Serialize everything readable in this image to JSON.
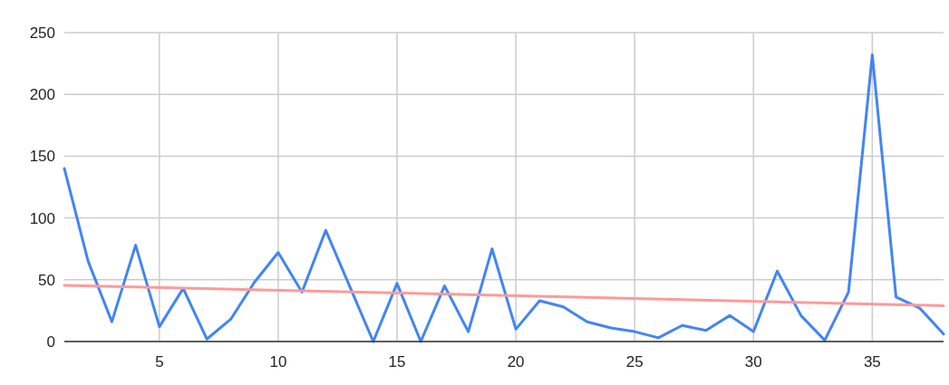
{
  "chart_data": {
    "type": "line",
    "x": [
      1,
      2,
      3,
      4,
      5,
      6,
      7,
      8,
      9,
      10,
      11,
      12,
      13,
      14,
      15,
      16,
      17,
      18,
      19,
      20,
      21,
      22,
      23,
      24,
      25,
      26,
      27,
      28,
      29,
      30,
      31,
      32,
      33,
      34,
      35,
      36,
      37,
      38
    ],
    "series": [
      {
        "color": "#4285f4",
        "values": [
          140,
          65,
          16,
          78,
          12,
          43,
          2,
          18,
          48,
          72,
          40,
          90,
          45,
          0,
          47,
          0,
          45,
          8,
          75,
          10,
          33,
          28,
          16,
          11,
          8,
          3,
          13,
          9,
          21,
          8,
          57,
          21,
          1,
          40,
          232,
          36,
          27,
          6
        ]
      },
      {
        "type": "line",
        "color": "#ff9a9a",
        "x": [
          1,
          38
        ],
        "values": [
          45.5,
          29
        ]
      }
    ],
    "xlim": [
      1,
      38
    ],
    "xticks": [
      5,
      10,
      15,
      20,
      25,
      30,
      35
    ],
    "ylim": [
      0,
      250
    ],
    "yticks": [
      0,
      50,
      100,
      150,
      200,
      250
    ],
    "grid": true,
    "marker": "none",
    "line_style": "solid"
  }
}
